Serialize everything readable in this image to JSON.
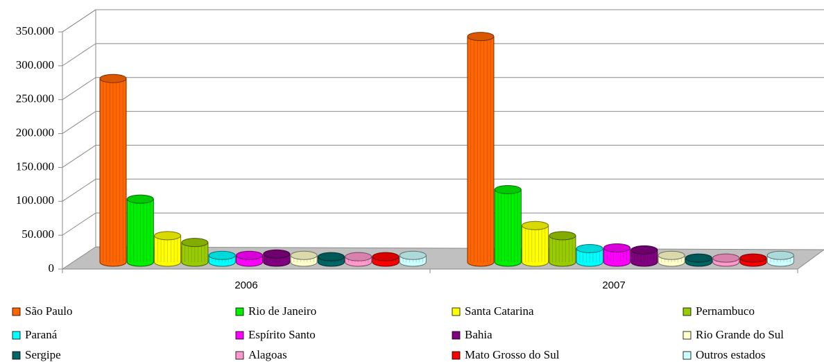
{
  "chart_data": {
    "type": "bar3d",
    "categories": [
      "2006",
      "2007"
    ],
    "series": [
      {
        "name": "São Paulo",
        "color": "#ff6600",
        "values": [
          271000,
          333000
        ]
      },
      {
        "name": "Rio de Janeiro",
        "color": "#00ee00",
        "values": [
          93000,
          107000
        ]
      },
      {
        "name": "Santa Catarina",
        "color": "#ffff00",
        "values": [
          39000,
          54000
        ]
      },
      {
        "name": "Pernambuco",
        "color": "#99cc00",
        "values": [
          29000,
          39000
        ]
      },
      {
        "name": "Paraná",
        "color": "#00ffff",
        "values": [
          10000,
          20000
        ]
      },
      {
        "name": "Espírito Santo",
        "color": "#ff00ff",
        "values": [
          10000,
          21000
        ]
      },
      {
        "name": "Bahia",
        "color": "#800080",
        "values": [
          12000,
          18000
        ]
      },
      {
        "name": "Rio Grande do Sul",
        "color": "#ffffcc",
        "values": [
          10000,
          10000
        ]
      },
      {
        "name": "Sergipe",
        "color": "#006666",
        "values": [
          8000,
          6000
        ]
      },
      {
        "name": "Alagoas",
        "color": "#ff99cc",
        "values": [
          8000,
          6000
        ]
      },
      {
        "name": "Mato Grosso do Sul",
        "color": "#ff0000",
        "values": [
          8000,
          6000
        ]
      },
      {
        "name": "Outros estados",
        "color": "#ccffff",
        "values": [
          10000,
          10000
        ]
      }
    ],
    "ylim": [
      0,
      350000
    ],
    "yticks": [
      0,
      {
        "value": 50000,
        "label": "50.000"
      },
      {
        "value": 100000,
        "label": "100.000"
      },
      {
        "value": 150000,
        "label": "150.000"
      },
      {
        "value": 200000,
        "label": "200.000"
      },
      {
        "value": 250000,
        "label": "250.000"
      },
      {
        "value": 300000,
        "label": "300.000"
      },
      {
        "value": 350000,
        "label": "350.000"
      }
    ],
    "grid": true
  }
}
